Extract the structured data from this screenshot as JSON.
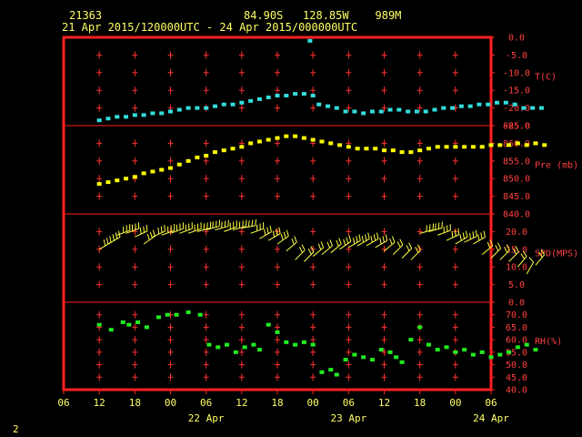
{
  "header": {
    "station": "21363",
    "location": "84.90S   128.85W    989M",
    "time_range": "21 Apr 2015/120000UTC - 24 Apr 2015/000000UTC"
  },
  "footer": {
    "page": "2"
  },
  "colors": {
    "frame": "#ff2020",
    "grid": "#ff3030",
    "temp": "#33dddd",
    "pres": "#ffff00",
    "wind": "#ffff44",
    "rh": "#22ee22",
    "text": "#ffff66",
    "label": "#ff4040"
  },
  "chart_data": {
    "type": "scatter",
    "x_axis": {
      "unit": "hours since 21 Apr 06 UTC",
      "range": [
        0,
        72
      ],
      "ticks": [
        0,
        6,
        12,
        18,
        24,
        30,
        36,
        42,
        48,
        54,
        60,
        66,
        72
      ],
      "tick_labels": [
        "06",
        "12",
        "18",
        "00",
        "06",
        "12",
        "18",
        "00",
        "06",
        "12",
        "18",
        "00",
        "06"
      ],
      "date_labels": [
        {
          "x": 24,
          "label": "22 Apr"
        },
        {
          "x": 48,
          "label": "23 Apr"
        },
        {
          "x": 72,
          "label": "24 Apr"
        }
      ]
    },
    "panels": [
      {
        "id": "temp",
        "label": "T(C)",
        "ylim": [
          -25,
          0
        ],
        "ticks": [
          0,
          -5,
          -10,
          -15,
          -20,
          -25
        ],
        "tick_labels": [
          "0.0",
          "-5.0",
          "-10.0",
          "-15.0",
          "-20.0",
          "-25.0"
        ],
        "series": [
          {
            "x": 6,
            "y": -23.5
          },
          {
            "x": 7.5,
            "y": -23.0
          },
          {
            "x": 9,
            "y": -22.5
          },
          {
            "x": 10.5,
            "y": -22.5
          },
          {
            "x": 12,
            "y": -22.0
          },
          {
            "x": 13.5,
            "y": -22.0
          },
          {
            "x": 15,
            "y": -21.5
          },
          {
            "x": 16.5,
            "y": -21.5
          },
          {
            "x": 18,
            "y": -21.0
          },
          {
            "x": 19.5,
            "y": -20.5
          },
          {
            "x": 21,
            "y": -20.0
          },
          {
            "x": 22.5,
            "y": -20.0
          },
          {
            "x": 24,
            "y": -20.0
          },
          {
            "x": 25.5,
            "y": -19.5
          },
          {
            "x": 27,
            "y": -19.0
          },
          {
            "x": 28.5,
            "y": -19.0
          },
          {
            "x": 30,
            "y": -18.5
          },
          {
            "x": 31.5,
            "y": -18.0
          },
          {
            "x": 33,
            "y": -17.5
          },
          {
            "x": 34.5,
            "y": -17.0
          },
          {
            "x": 36,
            "y": -16.5
          },
          {
            "x": 37.5,
            "y": -16.5
          },
          {
            "x": 39,
            "y": -16.0
          },
          {
            "x": 40.5,
            "y": -16.0
          },
          {
            "x": 41.5,
            "y": -1.0
          },
          {
            "x": 42,
            "y": -16.5
          },
          {
            "x": 43,
            "y": -19.0
          },
          {
            "x": 44.5,
            "y": -19.5
          },
          {
            "x": 46,
            "y": -20.0
          },
          {
            "x": 47.5,
            "y": -21.0
          },
          {
            "x": 49,
            "y": -21.0
          },
          {
            "x": 50.5,
            "y": -21.5
          },
          {
            "x": 52,
            "y": -21.0
          },
          {
            "x": 53.5,
            "y": -21.0
          },
          {
            "x": 55,
            "y": -20.5
          },
          {
            "x": 56.5,
            "y": -20.5
          },
          {
            "x": 58,
            "y": -21.0
          },
          {
            "x": 59.5,
            "y": -21.0
          },
          {
            "x": 61,
            "y": -21.0
          },
          {
            "x": 62.5,
            "y": -20.5
          },
          {
            "x": 64,
            "y": -20.0
          },
          {
            "x": 65.5,
            "y": -20.0
          },
          {
            "x": 67,
            "y": -19.5
          },
          {
            "x": 68.5,
            "y": -19.5
          },
          {
            "x": 70,
            "y": -19.0
          },
          {
            "x": 71.5,
            "y": -19.0
          },
          {
            "x": 73,
            "y": -18.5
          },
          {
            "x": 74.5,
            "y": -18.5
          },
          {
            "x": 76,
            "y": -19.0
          },
          {
            "x": 77.5,
            "y": -20.0
          },
          {
            "x": 79,
            "y": -20.0
          },
          {
            "x": 80.5,
            "y": -20.0
          }
        ]
      },
      {
        "id": "pres",
        "label": "Pre (mb)",
        "ylim": [
          840,
          865
        ],
        "ticks": [
          865,
          860,
          855,
          850,
          845,
          840
        ],
        "tick_labels": [
          "865.0",
          "860.0",
          "855.0",
          "850.0",
          "845.0",
          "840.0"
        ],
        "series": [
          {
            "x": 6,
            "y": 848.5
          },
          {
            "x": 7.5,
            "y": 849.0
          },
          {
            "x": 9,
            "y": 849.5
          },
          {
            "x": 10.5,
            "y": 850.0
          },
          {
            "x": 12,
            "y": 850.5
          },
          {
            "x": 13.5,
            "y": 851.5
          },
          {
            "x": 15,
            "y": 852.0
          },
          {
            "x": 16.5,
            "y": 852.5
          },
          {
            "x": 18,
            "y": 853.0
          },
          {
            "x": 19.5,
            "y": 854.0
          },
          {
            "x": 21,
            "y": 855.0
          },
          {
            "x": 22.5,
            "y": 856.0
          },
          {
            "x": 24,
            "y": 856.5
          },
          {
            "x": 25.5,
            "y": 857.5
          },
          {
            "x": 27,
            "y": 858.0
          },
          {
            "x": 28.5,
            "y": 858.5
          },
          {
            "x": 30,
            "y": 859.0
          },
          {
            "x": 31.5,
            "y": 860.0
          },
          {
            "x": 33,
            "y": 860.5
          },
          {
            "x": 34.5,
            "y": 861.0
          },
          {
            "x": 36,
            "y": 861.5
          },
          {
            "x": 37.5,
            "y": 862.0
          },
          {
            "x": 39,
            "y": 862.0
          },
          {
            "x": 40.5,
            "y": 861.5
          },
          {
            "x": 42,
            "y": 861.0
          },
          {
            "x": 43.5,
            "y": 860.5
          },
          {
            "x": 45,
            "y": 860.0
          },
          {
            "x": 46.5,
            "y": 859.5
          },
          {
            "x": 48,
            "y": 859.0
          },
          {
            "x": 49.5,
            "y": 858.5
          },
          {
            "x": 51,
            "y": 858.5
          },
          {
            "x": 52.5,
            "y": 858.5
          },
          {
            "x": 54,
            "y": 858.0
          },
          {
            "x": 55.5,
            "y": 858.0
          },
          {
            "x": 57,
            "y": 857.5
          },
          {
            "x": 58.5,
            "y": 857.5
          },
          {
            "x": 60,
            "y": 858.0
          },
          {
            "x": 61.5,
            "y": 858.5
          },
          {
            "x": 63,
            "y": 859.0
          },
          {
            "x": 64.5,
            "y": 859.0
          },
          {
            "x": 66,
            "y": 859.0
          },
          {
            "x": 67.5,
            "y": 859.0
          },
          {
            "x": 69,
            "y": 859.0
          },
          {
            "x": 70.5,
            "y": 859.0
          },
          {
            "x": 72,
            "y": 859.5
          },
          {
            "x": 73.5,
            "y": 859.5
          },
          {
            "x": 75,
            "y": 859.5
          },
          {
            "x": 76.5,
            "y": 860.0
          },
          {
            "x": 78,
            "y": 859.5
          },
          {
            "x": 79.5,
            "y": 860.0
          },
          {
            "x": 81,
            "y": 859.5
          }
        ]
      },
      {
        "id": "wind",
        "label": "SPD(MPS)",
        "ylim": [
          0,
          25
        ],
        "ticks": [
          25,
          20,
          15,
          10,
          5,
          0
        ],
        "tick_labels": [
          "",
          "20.0",
          "15.0",
          "10.0",
          "5.0",
          "0.0"
        ],
        "series": [
          {
            "x": 6,
            "y": 15.0,
            "dir": 240
          },
          {
            "x": 7.5,
            "y": 16.5,
            "dir": 240
          },
          {
            "x": 9,
            "y": 19.0,
            "dir": 250
          },
          {
            "x": 10.5,
            "y": 19.5,
            "dir": 250
          },
          {
            "x": 12,
            "y": 18.5,
            "dir": 245
          },
          {
            "x": 13.5,
            "y": 16.5,
            "dir": 235
          },
          {
            "x": 15,
            "y": 18.5,
            "dir": 245
          },
          {
            "x": 16.5,
            "y": 19.0,
            "dir": 250
          },
          {
            "x": 18,
            "y": 19.5,
            "dir": 250
          },
          {
            "x": 19.5,
            "y": 19.5,
            "dir": 250
          },
          {
            "x": 21,
            "y": 19.5,
            "dir": 250
          },
          {
            "x": 22.5,
            "y": 20.0,
            "dir": 255
          },
          {
            "x": 24,
            "y": 20.5,
            "dir": 255
          },
          {
            "x": 25.5,
            "y": 20.5,
            "dir": 255
          },
          {
            "x": 27,
            "y": 20.0,
            "dir": 250
          },
          {
            "x": 28.5,
            "y": 20.5,
            "dir": 255
          },
          {
            "x": 30,
            "y": 21.0,
            "dir": 260
          },
          {
            "x": 31.5,
            "y": 19.5,
            "dir": 250
          },
          {
            "x": 33,
            "y": 18.0,
            "dir": 240
          },
          {
            "x": 34.5,
            "y": 17.5,
            "dir": 240
          },
          {
            "x": 36,
            "y": 16.5,
            "dir": 235
          },
          {
            "x": 37.5,
            "y": 14.5,
            "dir": 230
          },
          {
            "x": 39,
            "y": 12.0,
            "dir": 225
          },
          {
            "x": 40.5,
            "y": 11.5,
            "dir": 225
          },
          {
            "x": 42,
            "y": 13.0,
            "dir": 230
          },
          {
            "x": 43.5,
            "y": 13.5,
            "dir": 230
          },
          {
            "x": 45,
            "y": 14.0,
            "dir": 230
          },
          {
            "x": 46.5,
            "y": 15.0,
            "dir": 235
          },
          {
            "x": 48,
            "y": 15.5,
            "dir": 240
          },
          {
            "x": 49.5,
            "y": 16.0,
            "dir": 240
          },
          {
            "x": 51,
            "y": 16.0,
            "dir": 240
          },
          {
            "x": 52.5,
            "y": 15.5,
            "dir": 240
          },
          {
            "x": 54,
            "y": 14.5,
            "dir": 230
          },
          {
            "x": 55.5,
            "y": 13.5,
            "dir": 225
          },
          {
            "x": 57,
            "y": 12.5,
            "dir": 225
          },
          {
            "x": 58.5,
            "y": 12.0,
            "dir": 225
          },
          {
            "x": 60,
            "y": 19.5,
            "dir": 255
          },
          {
            "x": 61.5,
            "y": 20.0,
            "dir": 255
          },
          {
            "x": 63,
            "y": 19.0,
            "dir": 250
          },
          {
            "x": 64.5,
            "y": 17.5,
            "dir": 245
          },
          {
            "x": 66,
            "y": 16.5,
            "dir": 240
          },
          {
            "x": 67.5,
            "y": 17.0,
            "dir": 245
          },
          {
            "x": 69,
            "y": 16.5,
            "dir": 240
          },
          {
            "x": 70.5,
            "y": 13.5,
            "dir": 230
          },
          {
            "x": 72,
            "y": 12.5,
            "dir": 225
          },
          {
            "x": 73.5,
            "y": 12.0,
            "dir": 225
          },
          {
            "x": 75,
            "y": 11.5,
            "dir": 225
          },
          {
            "x": 76.5,
            "y": 10.0,
            "dir": 220
          },
          {
            "x": 78,
            "y": 8.0,
            "dir": 210
          },
          {
            "x": 79.5,
            "y": 10.5,
            "dir": 220
          }
        ]
      },
      {
        "id": "rh",
        "label": "RH(%)",
        "ylim": [
          40,
          75
        ],
        "ticks": [
          75,
          70,
          65,
          60,
          55,
          50,
          45,
          40
        ],
        "tick_labels": [
          "",
          "70.0",
          "65.0",
          "60.0",
          "55.0",
          "50.0",
          "45.0",
          "40.0"
        ],
        "series": [
          {
            "x": 6,
            "y": 66
          },
          {
            "x": 8,
            "y": 64
          },
          {
            "x": 10,
            "y": 67
          },
          {
            "x": 11,
            "y": 66
          },
          {
            "x": 12.5,
            "y": 67
          },
          {
            "x": 14,
            "y": 65
          },
          {
            "x": 16,
            "y": 69
          },
          {
            "x": 17.5,
            "y": 70
          },
          {
            "x": 19,
            "y": 70
          },
          {
            "x": 21,
            "y": 71
          },
          {
            "x": 23,
            "y": 70
          },
          {
            "x": 24.5,
            "y": 58
          },
          {
            "x": 26,
            "y": 57
          },
          {
            "x": 27.5,
            "y": 58
          },
          {
            "x": 29,
            "y": 55
          },
          {
            "x": 30.5,
            "y": 57
          },
          {
            "x": 32,
            "y": 58
          },
          {
            "x": 33,
            "y": 56
          },
          {
            "x": 34.5,
            "y": 66
          },
          {
            "x": 36,
            "y": 63
          },
          {
            "x": 37.5,
            "y": 59
          },
          {
            "x": 39,
            "y": 58
          },
          {
            "x": 40.5,
            "y": 59
          },
          {
            "x": 42,
            "y": 58
          },
          {
            "x": 43.5,
            "y": 47
          },
          {
            "x": 45,
            "y": 48
          },
          {
            "x": 46,
            "y": 46
          },
          {
            "x": 47.5,
            "y": 52
          },
          {
            "x": 49,
            "y": 54
          },
          {
            "x": 50.5,
            "y": 53
          },
          {
            "x": 52,
            "y": 52
          },
          {
            "x": 53.5,
            "y": 56
          },
          {
            "x": 55,
            "y": 55
          },
          {
            "x": 56,
            "y": 53
          },
          {
            "x": 57,
            "y": 51
          },
          {
            "x": 58.5,
            "y": 60
          },
          {
            "x": 60,
            "y": 65
          },
          {
            "x": 61.5,
            "y": 58
          },
          {
            "x": 63,
            "y": 56
          },
          {
            "x": 64.5,
            "y": 57
          },
          {
            "x": 66,
            "y": 55
          },
          {
            "x": 67.5,
            "y": 56
          },
          {
            "x": 69,
            "y": 54
          },
          {
            "x": 70.5,
            "y": 55
          },
          {
            "x": 72,
            "y": 53
          },
          {
            "x": 73.5,
            "y": 54
          },
          {
            "x": 75,
            "y": 55
          },
          {
            "x": 76.5,
            "y": 57
          },
          {
            "x": 78,
            "y": 58
          },
          {
            "x": 79.5,
            "y": 56
          }
        ]
      }
    ]
  }
}
